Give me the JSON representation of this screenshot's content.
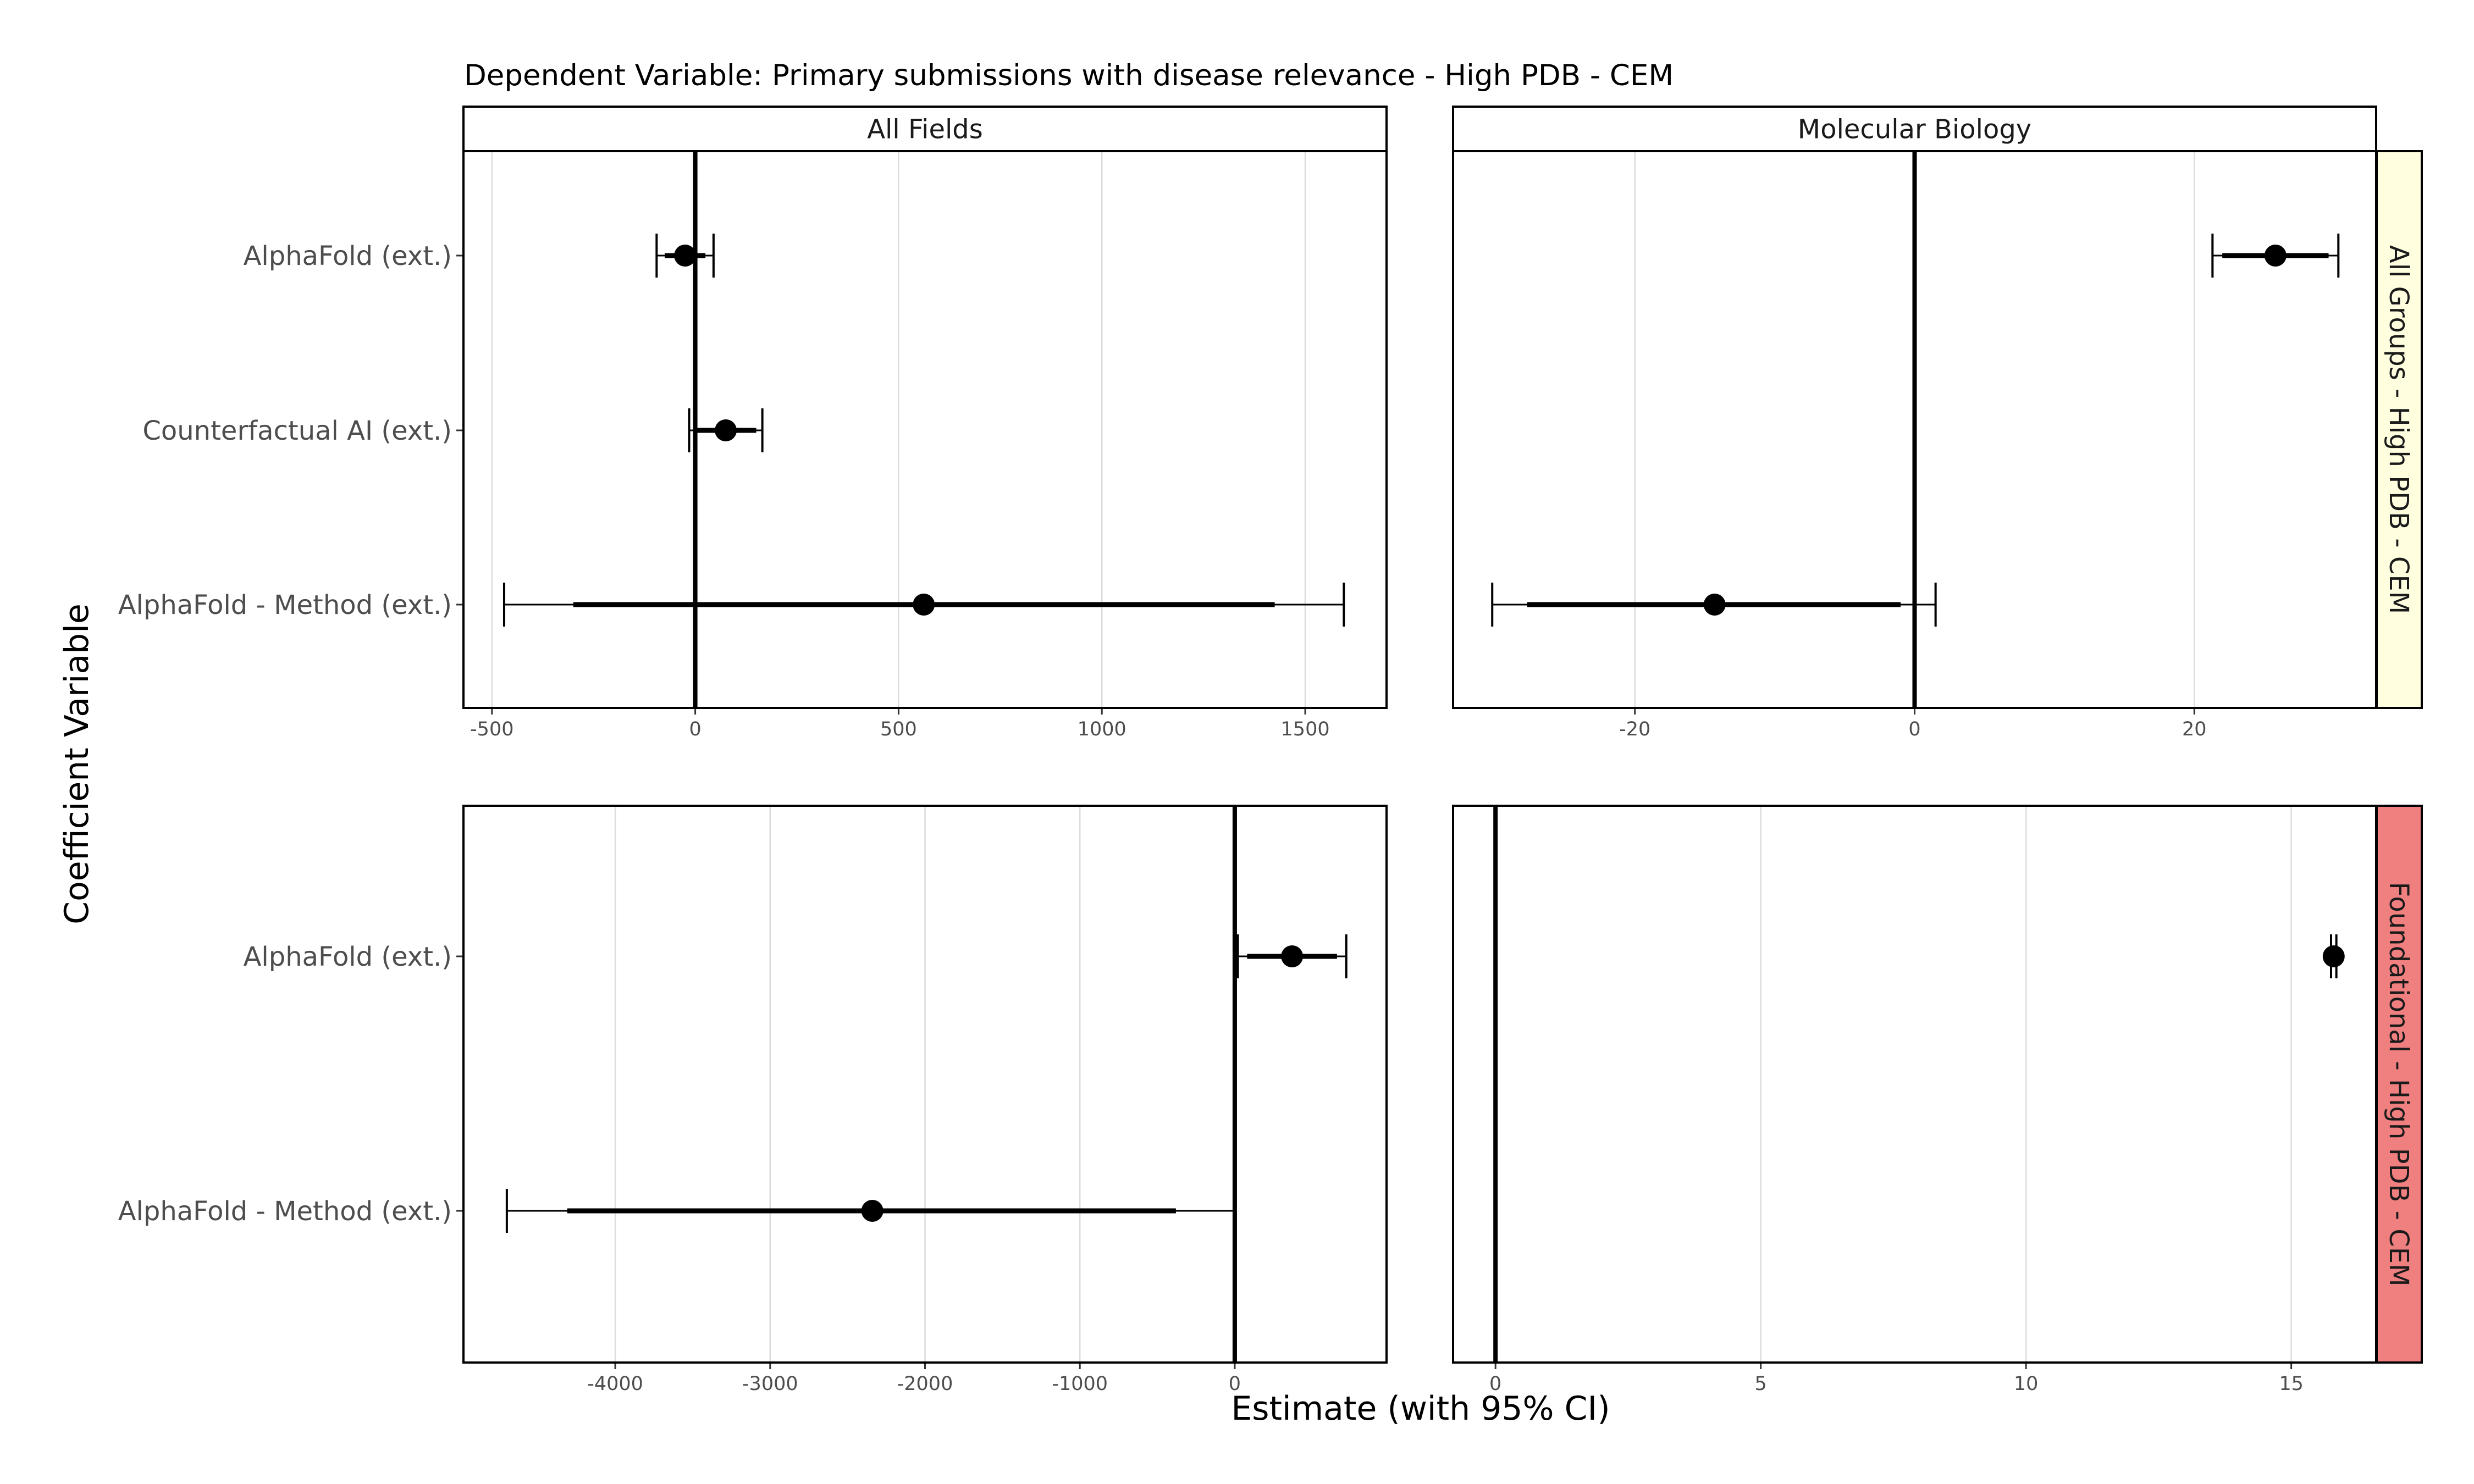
{
  "chart_data": {
    "type": "forest",
    "title": "Dependent Variable: Primary submissions with disease relevance  -  High PDB - CEM",
    "xlabel": "Estimate (with 95% CI)",
    "ylabel": "Coefficient Variable",
    "column_strips": [
      "All Fields",
      "Molecular Biology"
    ],
    "row_strips": [
      {
        "label": "All Groups - High PDB - CEM",
        "color": "#FFFFE0"
      },
      {
        "label": "Foundational - High PDB - CEM",
        "color": "#F08080"
      }
    ],
    "panels": [
      {
        "row": 0,
        "col": 0,
        "xlim": [
          -570,
          1700
        ],
        "xticks": [
          -500,
          0,
          500,
          1000,
          1500
        ],
        "xtick_labels": [
          "-500",
          "0",
          "500",
          "1000",
          "1500"
        ],
        "points": [
          {
            "label": "AlphaFold (ext.)",
            "estimate": -25,
            "ci90": [
              -75,
              25
            ],
            "ci95": [
              -95,
              45
            ]
          },
          {
            "label": "Counterfactual AI (ext.)",
            "estimate": 75,
            "ci90": [
              0,
              150
            ],
            "ci95": [
              -15,
              165
            ]
          },
          {
            "label": "AlphaFold - Method (ext.)",
            "estimate": 562,
            "ci90": [
              -300,
              1425
            ],
            "ci95": [
              -470,
              1595
            ]
          }
        ]
      },
      {
        "row": 0,
        "col": 1,
        "xlim": [
          -33,
          33
        ],
        "xticks": [
          -20,
          0,
          20
        ],
        "xtick_labels": [
          "-20",
          "0",
          "20"
        ],
        "points": [
          {
            "label": "AlphaFold (ext.)",
            "estimate": 25.8,
            "ci90": [
              22,
              29.6
            ],
            "ci95": [
              21.3,
              30.3
            ]
          },
          {
            "label": "Counterfactual AI (ext.)",
            "estimate": null,
            "ci90": null,
            "ci95": null
          },
          {
            "label": "AlphaFold - Method (ext.)",
            "estimate": -14.3,
            "ci90": [
              -27.7,
              -1
            ],
            "ci95": [
              -30.2,
              1.5
            ]
          }
        ]
      },
      {
        "row": 1,
        "col": 0,
        "xlim": [
          -4980,
          980
        ],
        "xticks": [
          -4000,
          -3000,
          -2000,
          -1000,
          0
        ],
        "xtick_labels": [
          "-4000",
          "-3000",
          "-2000",
          "-1000",
          "0"
        ],
        "points": [
          {
            "label": "AlphaFold (ext.)",
            "estimate": 370,
            "ci90": [
              80,
              660
            ],
            "ci95": [
              20,
              720
            ]
          },
          {
            "label": "AlphaFold - Method (ext.)",
            "estimate": -2340,
            "ci90": [
              -4310,
              -380
            ],
            "ci95": [
              -4700,
              0
            ]
          }
        ]
      },
      {
        "row": 1,
        "col": 1,
        "xlim": [
          -0.8,
          16.6
        ],
        "xticks": [
          0,
          5,
          10,
          15
        ],
        "xtick_labels": [
          "0",
          "5",
          "10",
          "15"
        ],
        "points": [
          {
            "label": "AlphaFold (ext.)",
            "estimate": 15.8,
            "ci90": [
              15.75,
              15.85
            ],
            "ci95": [
              15.75,
              15.85
            ]
          },
          {
            "label": "AlphaFold - Method (ext.)",
            "estimate": null,
            "ci90": null,
            "ci95": null
          }
        ]
      }
    ],
    "grid": "vertical-major",
    "reference_line": 0,
    "legend": "none"
  }
}
